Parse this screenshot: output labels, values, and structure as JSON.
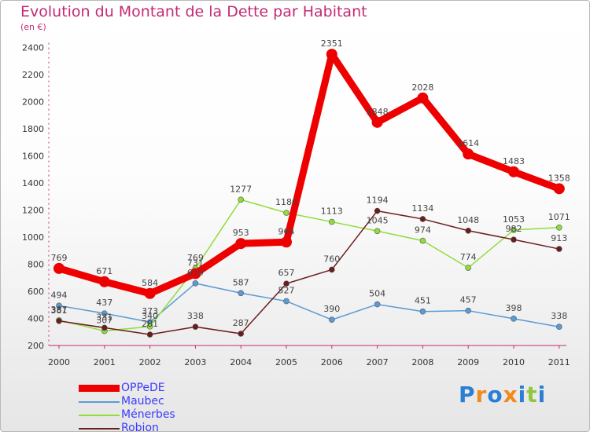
{
  "title": "Evolution du Montant de la Dette par Habitant",
  "subtitle": "(en €)",
  "chart_data": {
    "type": "line",
    "title": "Evolution du Montant de la Dette par Habitant",
    "ylabel": "(en €)",
    "ylim": [
      200,
      2400
    ],
    "yticks": [
      200,
      400,
      600,
      800,
      1000,
      1200,
      1400,
      1600,
      1800,
      2000,
      2200,
      2400
    ],
    "x": [
      "2000",
      "2001",
      "2002",
      "2003",
      "2004",
      "2005",
      "2006",
      "2007",
      "2008",
      "2009",
      "2010",
      "2011"
    ],
    "grid": false,
    "legend": "bottom-left",
    "series": [
      {
        "name": "OPPeDE",
        "color": "#ee0000",
        "values": [
          769,
          671,
          584,
          731,
          953,
          964,
          2351,
          1848,
          2028,
          1614,
          1483,
          1358
        ]
      },
      {
        "name": "Maubec",
        "color": "#5b9bd5",
        "values": [
          494,
          437,
          373,
          659,
          587,
          527,
          390,
          504,
          451,
          457,
          398,
          338
        ]
      },
      {
        "name": "Ménerbes",
        "color": "#8fdd3c",
        "values": [
          387,
          307,
          340,
          769,
          1277,
          1180,
          1113,
          1045,
          974,
          774,
          1053,
          1071
        ]
      },
      {
        "name": "Robion",
        "color": "#6b1d1d",
        "values": [
          381,
          331,
          281,
          338,
          287,
          657,
          760,
          1194,
          1134,
          1048,
          982,
          913
        ]
      }
    ]
  },
  "logo": {
    "letters": [
      "P",
      "r",
      "o",
      "x",
      "i",
      "t",
      "i"
    ],
    "colors": [
      "#2a7fd4",
      "#f08a1c",
      "#2a7fd4",
      "#f08a1c",
      "#2a7fd4",
      "#8fc63f",
      "#2a7fd4"
    ]
  }
}
